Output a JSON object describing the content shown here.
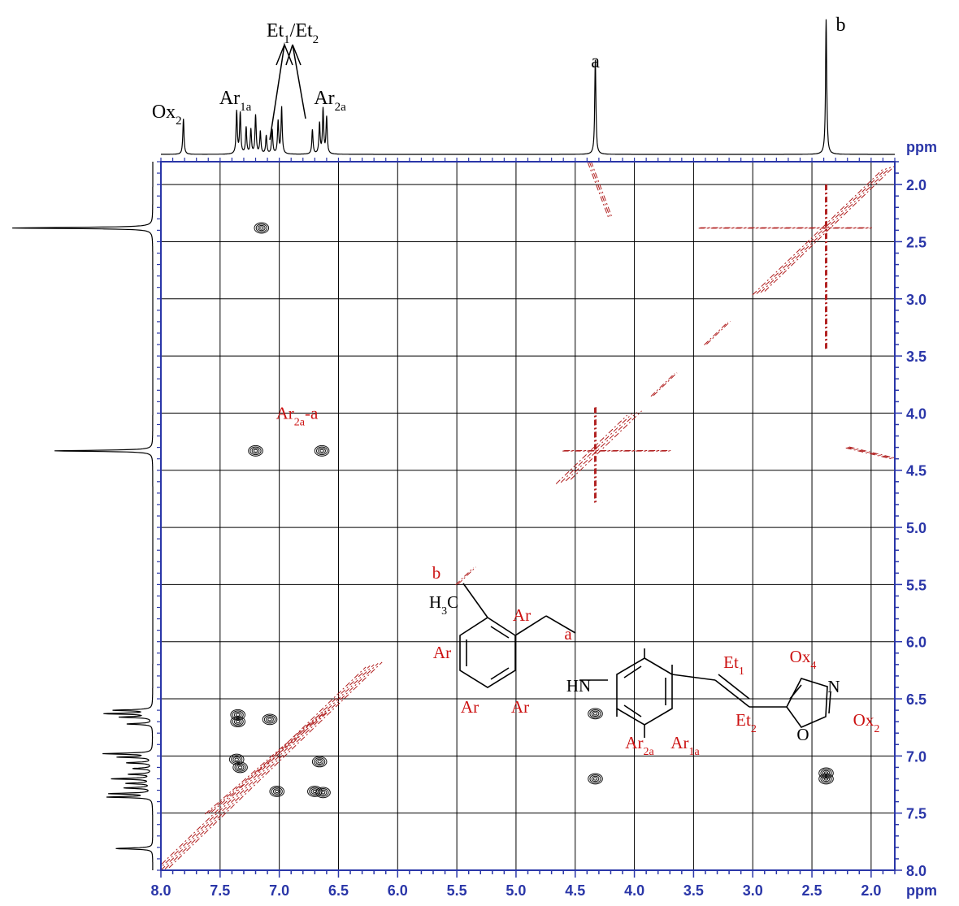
{
  "chart_data": {
    "type": "heatmap",
    "title": "",
    "xlabel": "ppm",
    "ylabel": "ppm",
    "x_axis": {
      "range": [
        8.0,
        1.8
      ],
      "ticks": [
        "8.0",
        "7.5",
        "7.0",
        "6.5",
        "6.0",
        "5.5",
        "5.0",
        "4.5",
        "4.0",
        "3.5",
        "3.0",
        "2.5",
        "2.0"
      ],
      "unit": "ppm"
    },
    "y_axis": {
      "range": [
        1.8,
        8.0
      ],
      "ticks": [
        "2.0",
        "2.5",
        "3.0",
        "3.5",
        "4.0",
        "4.5",
        "5.0",
        "5.5",
        "6.0",
        "6.5",
        "7.0",
        "7.5",
        "8.0"
      ],
      "unit": "ppm"
    },
    "grid": true,
    "peak_labels": [
      {
        "text": "Ox",
        "sub": "2",
        "shift": 7.81
      },
      {
        "text": "Ar",
        "sub": "1a",
        "shift": 7.33
      },
      {
        "text": "Et",
        "sub": "1",
        "text2": "/Et",
        "sub2": "2",
        "shift": 6.85
      },
      {
        "text": "Ar",
        "sub": "2a",
        "shift": 6.64
      },
      {
        "text": "a",
        "sub": "",
        "shift": 4.33
      },
      {
        "text": "b",
        "sub": "",
        "shift": 2.38
      }
    ],
    "proton_spectrum_peaks": [
      {
        "shift": 7.81,
        "intensity": 0.35
      },
      {
        "shift": 7.36,
        "intensity": 0.42
      },
      {
        "shift": 7.33,
        "intensity": 0.4
      },
      {
        "shift": 7.28,
        "intensity": 0.26
      },
      {
        "shift": 7.24,
        "intensity": 0.24
      },
      {
        "shift": 7.2,
        "intensity": 0.38
      },
      {
        "shift": 7.16,
        "intensity": 0.22
      },
      {
        "shift": 7.11,
        "intensity": 0.18
      },
      {
        "shift": 7.06,
        "intensity": 0.24
      },
      {
        "shift": 7.01,
        "intensity": 0.32
      },
      {
        "shift": 6.98,
        "intensity": 0.46
      },
      {
        "shift": 6.72,
        "intensity": 0.24
      },
      {
        "shift": 6.66,
        "intensity": 0.3
      },
      {
        "shift": 6.63,
        "intensity": 0.44
      },
      {
        "shift": 6.6,
        "intensity": 0.36
      },
      {
        "shift": 4.33,
        "intensity": 0.93
      },
      {
        "shift": 2.38,
        "intensity": 1.33
      }
    ],
    "cross_peaks": [
      {
        "x": 7.15,
        "y": 2.38,
        "color": "#111111"
      },
      {
        "x": 7.2,
        "y": 4.33,
        "color": "#111111"
      },
      {
        "x": 6.64,
        "y": 4.33,
        "color": "#111111"
      },
      {
        "x": 7.35,
        "y": 6.64,
        "color": "#111111"
      },
      {
        "x": 7.35,
        "y": 6.7,
        "color": "#111111"
      },
      {
        "x": 7.08,
        "y": 6.68,
        "color": "#111111"
      },
      {
        "x": 7.36,
        "y": 7.03,
        "color": "#111111"
      },
      {
        "x": 7.33,
        "y": 7.1,
        "color": "#111111"
      },
      {
        "x": 7.02,
        "y": 7.31,
        "color": "#111111"
      },
      {
        "x": 6.63,
        "y": 7.32,
        "color": "#111111"
      },
      {
        "x": 6.7,
        "y": 7.31,
        "color": "#111111"
      },
      {
        "x": 6.66,
        "y": 7.05,
        "color": "#111111"
      },
      {
        "x": 4.33,
        "y": 6.63,
        "color": "#111111"
      },
      {
        "x": 4.33,
        "y": 7.2,
        "color": "#111111"
      },
      {
        "x": 2.38,
        "y": 7.15,
        "color": "#111111"
      },
      {
        "x": 2.38,
        "y": 7.2,
        "color": "#111111"
      }
    ],
    "annotations": [
      {
        "text": "Ar",
        "sub": "2a",
        "suffix": "-a",
        "x": 6.85,
        "y": 4.0
      }
    ],
    "colors": {
      "axis": "#2a36a8",
      "positive": "#111111",
      "negative": "#b01e1e",
      "label_red": "#cc1111"
    }
  },
  "molecule": {
    "methyl": "H",
    "methyl_sub": "3",
    "methyl_tail": "C",
    "amine": "HN",
    "oxygen": "O",
    "nitrogen": "N",
    "labels": {
      "b": "b",
      "a": "a",
      "ar": "Ar",
      "ar2a": "Ar",
      "ar2a_sub": "2a",
      "ar1a": "Ar",
      "ar1a_sub": "1a",
      "et1": "Et",
      "et1_sub": "1",
      "et2": "Et",
      "et2_sub": "2",
      "ox4": "Ox",
      "ox4_sub": "4",
      "ox2": "Ox",
      "ox2_sub": "2"
    }
  }
}
